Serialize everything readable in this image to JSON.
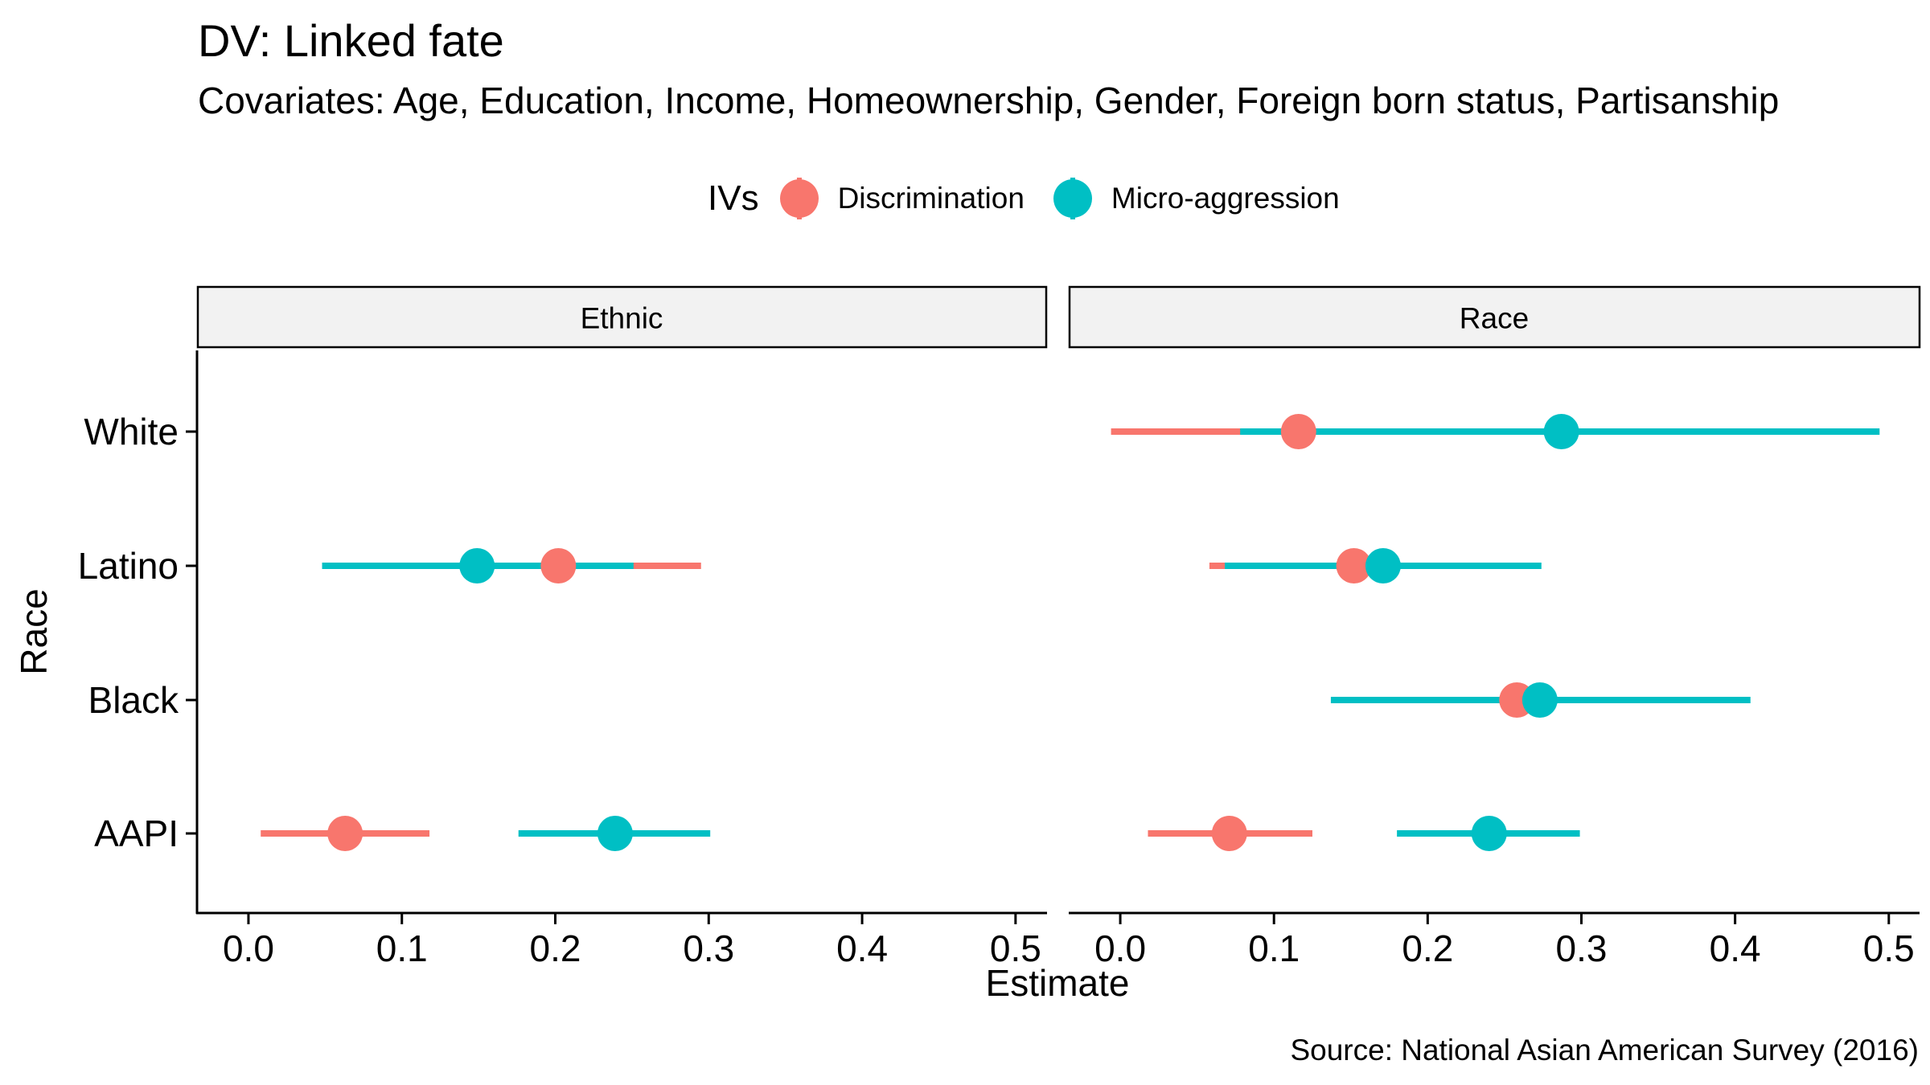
{
  "chart_data": {
    "type": "scatter",
    "title": "DV: Linked fate",
    "subtitle": "Covariates: Age, Education, Income, Homeownership, Gender, Foreign born status, Partisanship",
    "caption": "Source: National Asian American Survey (2016)",
    "xlabel": "Estimate",
    "ylabel": "Race",
    "xlim": [
      -0.033,
      0.52
    ],
    "x_ticks": [
      "0.0",
      "0.1",
      "0.2",
      "0.3",
      "0.4",
      "0.5"
    ],
    "y_categories": [
      "White",
      "Latino",
      "Black",
      "AAPI"
    ],
    "facets": [
      "Ethnic",
      "Race"
    ],
    "legend": {
      "title": "IVs",
      "position": "top"
    },
    "grid": false,
    "series": [
      {
        "name": "Discrimination",
        "color": "#F8766D",
        "points": [
          {
            "facet": "Ethnic",
            "category": "Latino",
            "estimate": 0.202,
            "low": 0.05,
            "high": 0.295
          },
          {
            "facet": "Ethnic",
            "category": "AAPI",
            "estimate": 0.063,
            "low": 0.008,
            "high": 0.118
          },
          {
            "facet": "Race",
            "category": "White",
            "estimate": 0.116,
            "low": -0.006,
            "high": 0.238
          },
          {
            "facet": "Race",
            "category": "Latino",
            "estimate": 0.152,
            "low": 0.058,
            "high": 0.246
          },
          {
            "facet": "Race",
            "category": "Black",
            "estimate": 0.258,
            "low": 0.172,
            "high": 0.344
          },
          {
            "facet": "Race",
            "category": "AAPI",
            "estimate": 0.071,
            "low": 0.018,
            "high": 0.125
          }
        ]
      },
      {
        "name": "Micro-aggression",
        "color": "#00BFC4",
        "points": [
          {
            "facet": "Ethnic",
            "category": "Latino",
            "estimate": 0.149,
            "low": 0.048,
            "high": 0.251
          },
          {
            "facet": "Ethnic",
            "category": "AAPI",
            "estimate": 0.239,
            "low": 0.176,
            "high": 0.301
          },
          {
            "facet": "Race",
            "category": "White",
            "estimate": 0.287,
            "low": 0.078,
            "high": 0.494
          },
          {
            "facet": "Race",
            "category": "Latino",
            "estimate": 0.171,
            "low": 0.068,
            "high": 0.274
          },
          {
            "facet": "Race",
            "category": "Black",
            "estimate": 0.273,
            "low": 0.137,
            "high": 0.41
          },
          {
            "facet": "Race",
            "category": "AAPI",
            "estimate": 0.24,
            "low": 0.18,
            "high": 0.299
          }
        ]
      }
    ]
  }
}
